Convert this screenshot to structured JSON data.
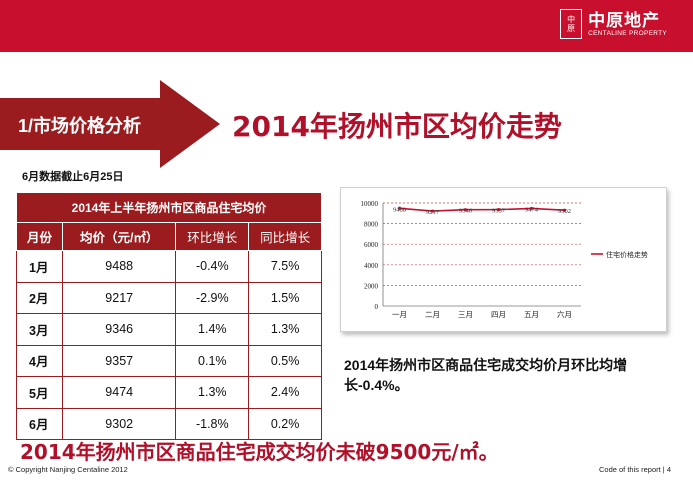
{
  "header": {
    "brand_mark": "中原",
    "brand_cn": "中原地产",
    "brand_en": "CENTALINE PROPERTY"
  },
  "section": {
    "label": "1/市场价格分析"
  },
  "title": "2014年扬州市区均价走势",
  "data_note": "6月数据截止6月25日",
  "table": {
    "caption": "2014年上半年扬州市区商品住宅均价",
    "headers": [
      "月份",
      "均价（元/㎡）",
      "环比增长",
      "同比增长"
    ],
    "rows": [
      {
        "month": "1月",
        "price": "9488",
        "mom": "-0.4%",
        "yoy": "7.5%"
      },
      {
        "month": "2月",
        "price": "9217",
        "mom": "-2.9%",
        "yoy": "1.5%"
      },
      {
        "month": "3月",
        "price": "9346",
        "mom": "1.4%",
        "yoy": "1.3%"
      },
      {
        "month": "4月",
        "price": "9357",
        "mom": "0.1%",
        "yoy": "0.5%"
      },
      {
        "month": "5月",
        "price": "9474",
        "mom": "1.3%",
        "yoy": "2.4%"
      },
      {
        "month": "6月",
        "price": "9302",
        "mom": "-1.8%",
        "yoy": "0.2%"
      }
    ]
  },
  "chart_data": {
    "type": "line",
    "categories": [
      "一月",
      "二月",
      "三月",
      "四月",
      "五月",
      "六月"
    ],
    "series": [
      {
        "name": "住宅价格走势",
        "values": [
          9488,
          9217,
          9346,
          9357,
          9474,
          9302
        ],
        "color": "#c8102e"
      }
    ],
    "data_labels": [
      "9488",
      "9217",
      "9346",
      "9357",
      "9474",
      "9302"
    ],
    "y_ticks": [
      "0",
      "2000",
      "4000",
      "6000",
      "8000",
      "10000"
    ],
    "ylim": [
      0,
      10000
    ],
    "grid": true,
    "legend_position": "right"
  },
  "chart_caption": "2014年扬州市区商品住宅成交均价月环比均增长-0.4%。",
  "summary": "2014年扬州市区商品住宅成交均价未破9500元/㎡。",
  "footer": {
    "copyright": "© Copyright  Nanjing Centaline 2012",
    "code": "Code of this report  |   4"
  },
  "colors": {
    "brand_red": "#c8102e",
    "table_header": "#9b1c1f",
    "title_red": "#b0102a"
  }
}
